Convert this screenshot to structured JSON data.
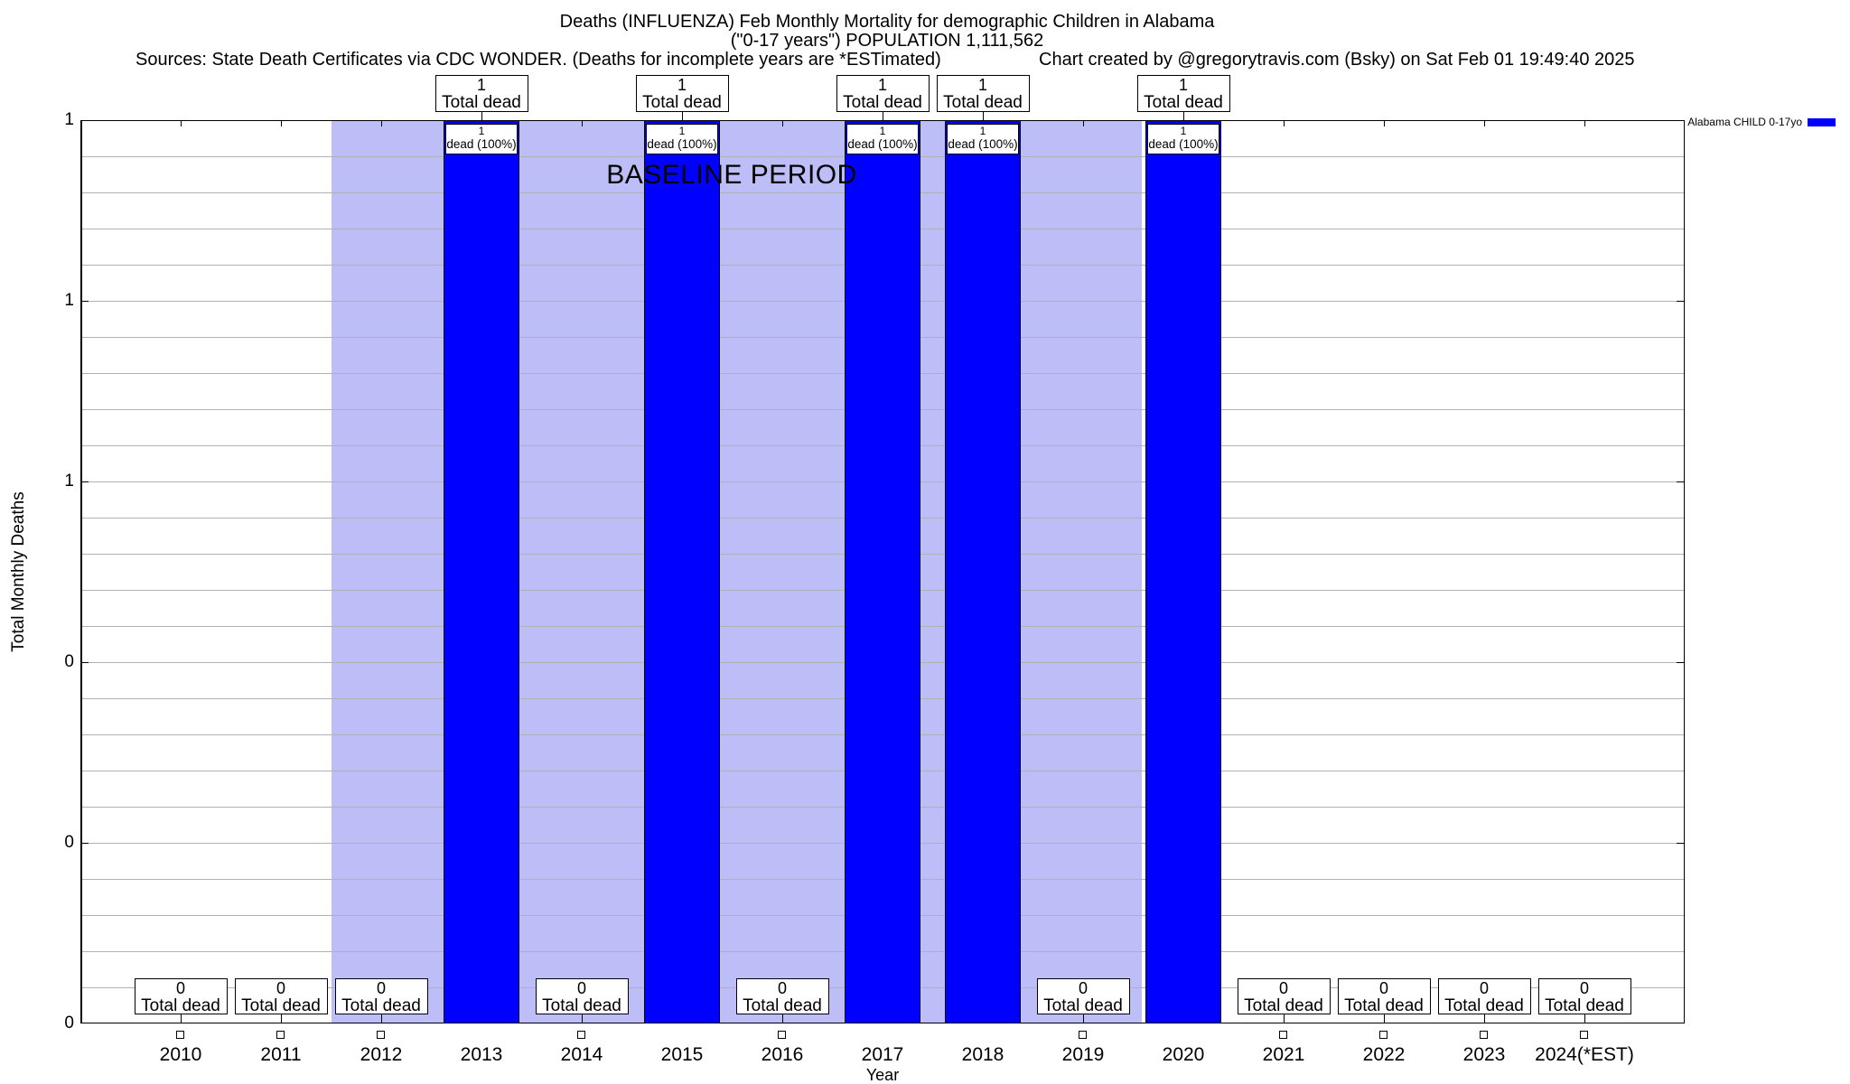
{
  "header": {
    "title": "Deaths (INFLUENZA) Feb Monthly Mortality for demographic Children in Alabama",
    "subtitle": "(\"0-17 years\") POPULATION 1,111,562",
    "sources": "Sources: State Death Certificates via CDC WONDER. (Deaths for incomplete years are *ESTimated)",
    "credit": "Chart created by @gregorytravis.com (Bsky) on Sat Feb 01 19:49:40 2025"
  },
  "chart_data": {
    "type": "bar",
    "title": "Deaths (INFLUENZA) Feb Monthly Mortality for demographic Children in Alabama (\"0-17 years\") POPULATION 1,111,562",
    "xlabel": "Year",
    "ylabel": "Total Monthly Deaths",
    "years": [
      2010,
      2011,
      2012,
      2013,
      2014,
      2015,
      2016,
      2017,
      2018,
      2019,
      2020,
      2021,
      2022,
      2023,
      2024
    ],
    "categories": [
      "2010",
      "2011",
      "2012",
      "2013",
      "2014",
      "2015",
      "2016",
      "2017",
      "2018",
      "2019",
      "2020",
      "2021",
      "2022",
      "2023",
      "2024(*EST)"
    ],
    "series": [
      {
        "name": "Alabama CHILD 0-17yo",
        "color": "#0000ff",
        "values": [
          0,
          0,
          0,
          1,
          0,
          1,
          0,
          1,
          1,
          0,
          1,
          0,
          0,
          0,
          0
        ]
      }
    ],
    "ylim": [
      0,
      1
    ],
    "ytick_values": [
      1.0,
      0.8,
      0.6,
      0.4,
      0.2,
      0.0
    ],
    "ytick_labels": [
      "1",
      "1",
      "1",
      "0",
      "0",
      "0"
    ],
    "grid": true,
    "legend_position": "top-right-outside",
    "baseline_band": {
      "label": "BASELINE PERIOD",
      "from_year": 2011.5,
      "to_year": 2019.59,
      "color": "#bdbdf8"
    },
    "annotations": {
      "value_label_text": "Total dead",
      "pct_label_text": "dead (100%)"
    }
  }
}
